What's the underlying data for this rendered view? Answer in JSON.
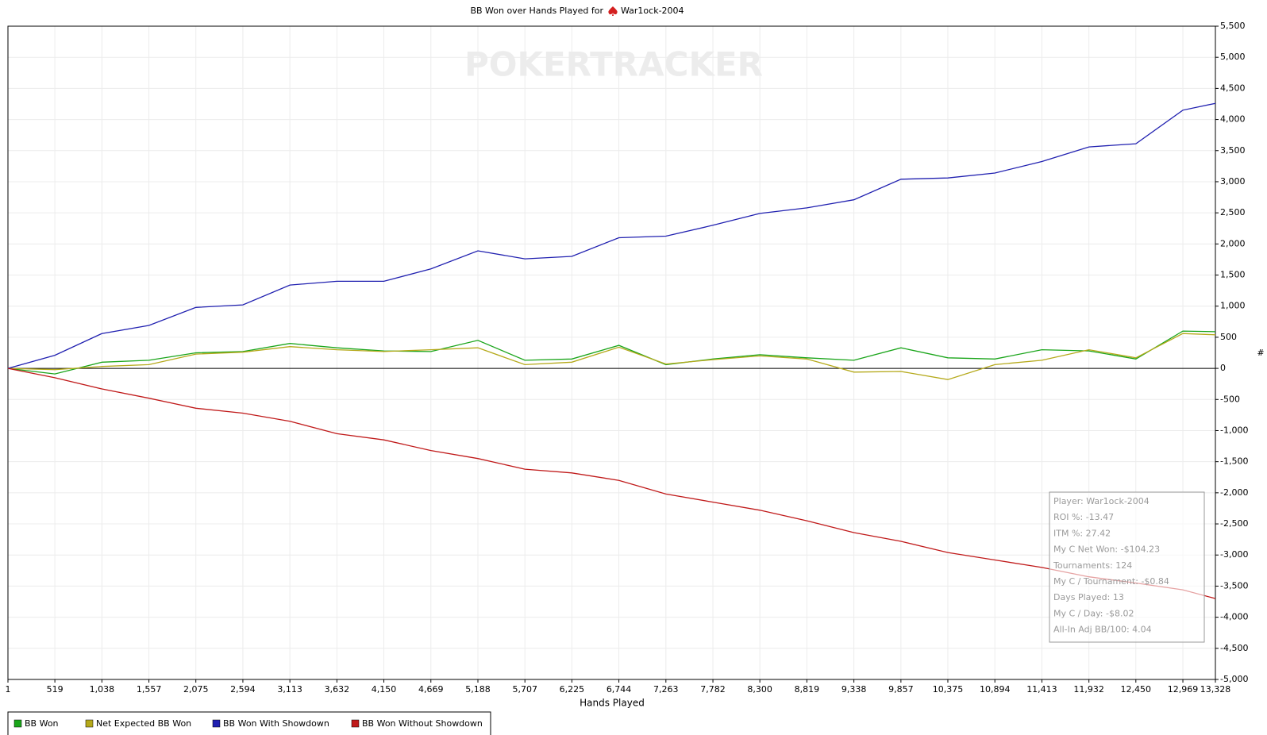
{
  "chart_data": {
    "type": "line",
    "title": "BB Won over Hands Played for",
    "title_player": "War1ock-2004",
    "watermark": "POKERTRACKER",
    "x_label": "Hands Played",
    "y_label": "#",
    "x": [
      1,
      519,
      1038,
      1557,
      2075,
      2594,
      3113,
      3632,
      4150,
      4669,
      5188,
      5707,
      6225,
      6744,
      7263,
      7782,
      8300,
      8819,
      9338,
      9857,
      10375,
      10894,
      11413,
      11932,
      12450,
      12969,
      13328
    ],
    "xlim": [
      1,
      13328
    ],
    "xticks": [
      1,
      519,
      {
        "value": 1038,
        "label": "1,038"
      },
      {
        "value": 1557,
        "label": "1,557"
      },
      {
        "value": 2075,
        "label": "2,075"
      },
      {
        "value": 2594,
        "label": "2,594"
      },
      {
        "value": 3113,
        "label": "3,113"
      },
      {
        "value": 3632,
        "label": "3,632"
      },
      {
        "value": 4150,
        "label": "4,150"
      },
      {
        "value": 4669,
        "label": "4,669"
      },
      {
        "value": 5188,
        "label": "5,188"
      },
      {
        "value": 5707,
        "label": "5,707"
      },
      {
        "value": 6225,
        "label": "6,225"
      },
      {
        "value": 6744,
        "label": "6,744"
      },
      {
        "value": 7263,
        "label": "7,263"
      },
      {
        "value": 7782,
        "label": "7,782"
      },
      {
        "value": 8300,
        "label": "8,300"
      },
      {
        "value": 8819,
        "label": "8,819"
      },
      {
        "value": 9338,
        "label": "9,338"
      },
      {
        "value": 9857,
        "label": "9,857"
      },
      {
        "value": 10375,
        "label": "10,375"
      },
      {
        "value": 10894,
        "label": "10,894"
      },
      {
        "value": 11413,
        "label": "11,413"
      },
      {
        "value": 11932,
        "label": "11,932"
      },
      {
        "value": 12450,
        "label": "12,450"
      },
      {
        "value": 12969,
        "label": "12,969"
      },
      {
        "value": 13328,
        "label": "13,328"
      }
    ],
    "ylim": [
      -5000,
      5500
    ],
    "yticks": [
      {
        "value": -5000,
        "label": "-5,000"
      },
      {
        "value": -4500,
        "label": "-4,500"
      },
      {
        "value": -4000,
        "label": "-4,000"
      },
      {
        "value": -3500,
        "label": "-3,500"
      },
      {
        "value": -3000,
        "label": "-3,000"
      },
      {
        "value": -2500,
        "label": "-2,500"
      },
      {
        "value": -2000,
        "label": "-2,000"
      },
      {
        "value": -1500,
        "label": "-1,500"
      },
      {
        "value": -1000,
        "label": "-1,000"
      },
      -500,
      0,
      500,
      {
        "value": 1000,
        "label": "1,000"
      },
      {
        "value": 1500,
        "label": "1,500"
      },
      {
        "value": 2000,
        "label": "2,000"
      },
      {
        "value": 2500,
        "label": "2,500"
      },
      {
        "value": 3000,
        "label": "3,000"
      },
      {
        "value": 3500,
        "label": "3,500"
      },
      {
        "value": 4000,
        "label": "4,000"
      },
      {
        "value": 4500,
        "label": "4,500"
      },
      {
        "value": 5000,
        "label": "5,000"
      },
      {
        "value": 5500,
        "label": "5,500"
      }
    ],
    "grid": true,
    "series": [
      {
        "name": "BB Won",
        "color": "#1aa51a",
        "values": [
          0,
          -90,
          100,
          130,
          250,
          270,
          400,
          330,
          280,
          270,
          450,
          130,
          150,
          370,
          60,
          150,
          220,
          170,
          130,
          330,
          170,
          150,
          300,
          280,
          150,
          600,
          590
        ]
      },
      {
        "name": "Net Expected BB Won",
        "color": "#b5a91a",
        "values": [
          0,
          -20,
          30,
          60,
          230,
          260,
          350,
          300,
          270,
          300,
          330,
          60,
          100,
          340,
          70,
          140,
          200,
          150,
          -60,
          -50,
          -180,
          60,
          130,
          300,
          170,
          560,
          540
        ]
      },
      {
        "name": "BB Won With Showdown",
        "color": "#2020b0",
        "values": [
          0,
          210,
          560,
          690,
          980,
          1020,
          1340,
          1400,
          1400,
          1600,
          1890,
          1760,
          1800,
          2100,
          2125,
          2300,
          2490,
          2580,
          2710,
          3040,
          3060,
          3140,
          3325,
          3560,
          3610,
          4150,
          4260
        ]
      },
      {
        "name": "BB Won Without Showdown",
        "color": "#c01a1a",
        "values": [
          0,
          -150,
          -330,
          -480,
          -640,
          -720,
          -850,
          -1050,
          -1150,
          -1320,
          -1450,
          -1620,
          -1680,
          -1800,
          -2020,
          -2150,
          -2280,
          -2450,
          -2640,
          -2780,
          -2960,
          -3080,
          -3200,
          -3350,
          -3450,
          -3560,
          -3700
        ]
      }
    ],
    "stats": [
      "Player: War1ock-2004",
      "ROI %: -13.47",
      "ITM %: 27.42",
      "My C Net Won: -$104.23",
      "Tournaments: 124",
      "My C / Tournament: -$0.84",
      "Days Played: 13",
      "My C / Day: -$8.02",
      "All-In Adj BB/100: 4.04"
    ]
  }
}
